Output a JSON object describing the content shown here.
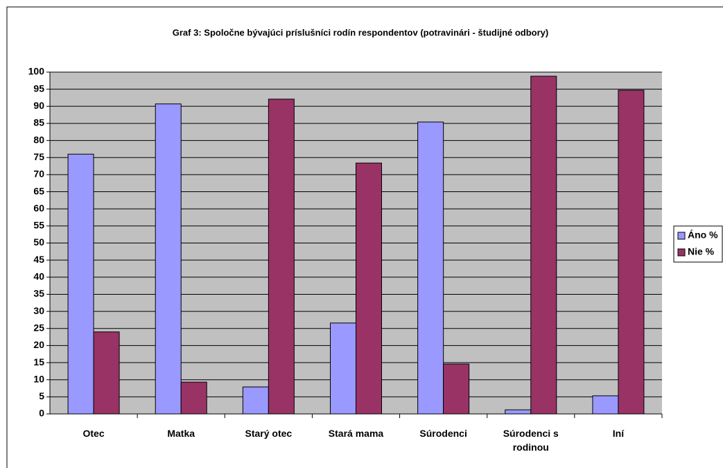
{
  "chart_data": {
    "type": "bar",
    "title": "Graf 3: Spoločne bývajúci príslušníci rodín respondentov  (potravinári - študijné odbory)",
    "categories": [
      "Otec",
      "Matka",
      "Starý otec",
      "Stará mama",
      "Súrodenci",
      "Súrodenci s rodinou",
      "Iní"
    ],
    "series": [
      {
        "name": "Áno %",
        "color": "#9999ff",
        "values": [
          76,
          90.7,
          7.9,
          26.6,
          85.4,
          1.2,
          5.3
        ]
      },
      {
        "name": "Nie %",
        "color": "#993366",
        "values": [
          24,
          9.3,
          92.1,
          73.4,
          14.6,
          98.8,
          94.7
        ]
      }
    ],
    "ylim": [
      0,
      100
    ],
    "yticks": [
      0,
      5,
      10,
      15,
      20,
      25,
      30,
      35,
      40,
      45,
      50,
      55,
      60,
      65,
      70,
      75,
      80,
      85,
      90,
      95,
      100
    ],
    "grid": true,
    "legend": "right"
  }
}
